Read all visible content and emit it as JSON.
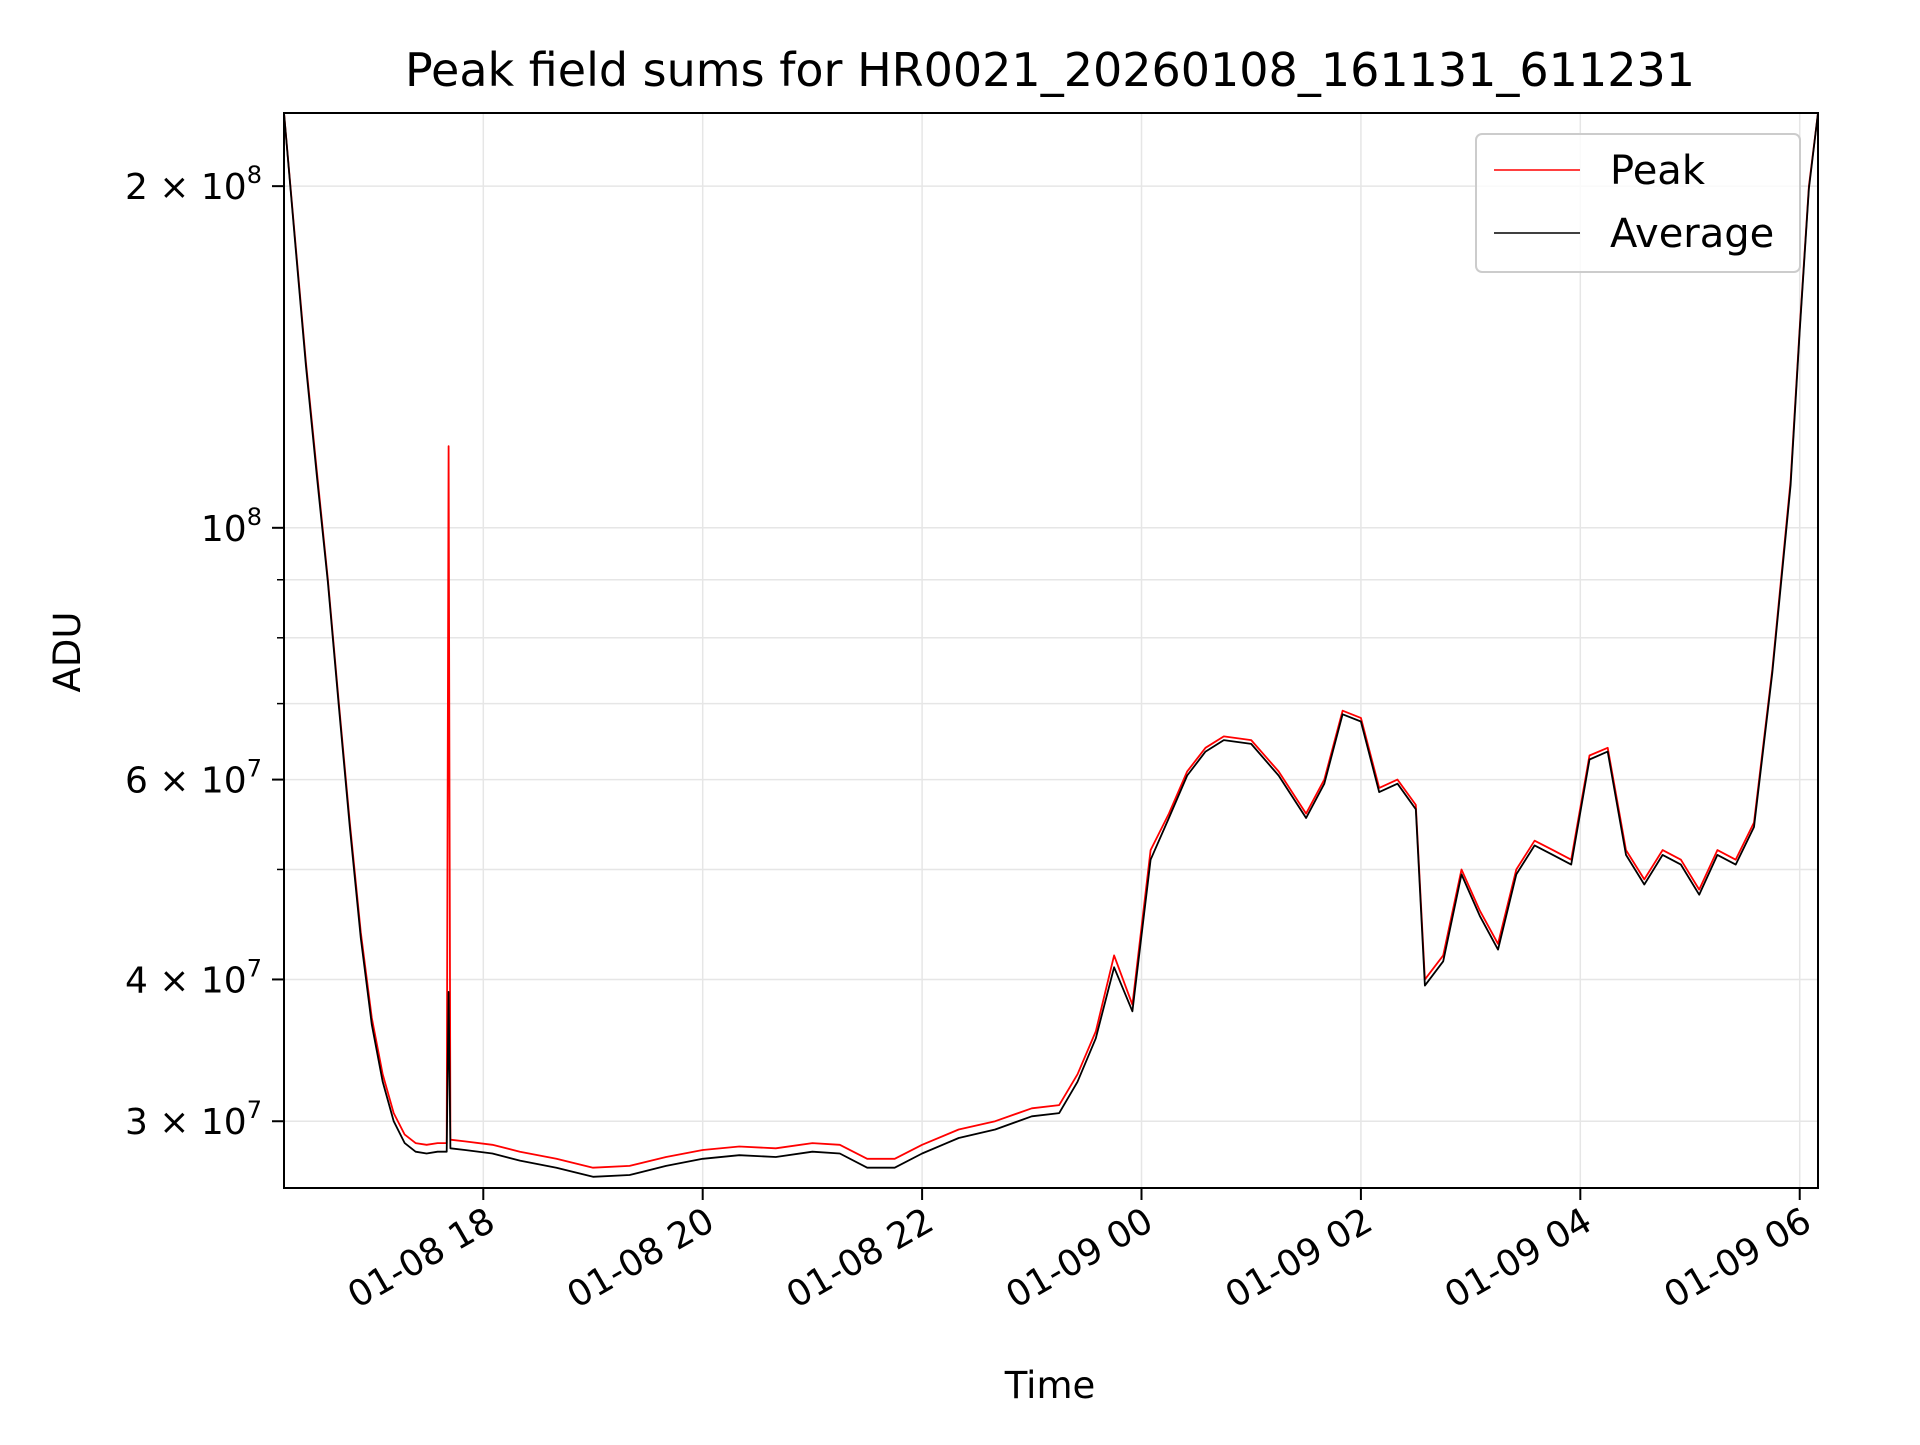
{
  "chart_data": {
    "type": "line",
    "title": "Peak field sums for HR0021_20260108_161131_611231",
    "xlabel": "Time",
    "ylabel": "ADU",
    "y_scale": "log",
    "ylim": [
      26200000,
      232000000
    ],
    "xlim": [
      "2026-01-08 16:11",
      "2026-01-09 06:10"
    ],
    "grid": true,
    "legend_position": "upper right",
    "x_ticks": [
      {
        "value": "2026-01-08 18:00",
        "label": "01-08 18"
      },
      {
        "value": "2026-01-08 20:00",
        "label": "01-08 20"
      },
      {
        "value": "2026-01-08 22:00",
        "label": "01-08 22"
      },
      {
        "value": "2026-01-09 00:00",
        "label": "01-09 00"
      },
      {
        "value": "2026-01-09 02:00",
        "label": "01-09 02"
      },
      {
        "value": "2026-01-09 04:00",
        "label": "01-09 04"
      },
      {
        "value": "2026-01-09 06:00",
        "label": "01-09 06"
      }
    ],
    "y_ticks": [
      {
        "value": 30000000,
        "mantissa": "3",
        "exponent": "7"
      },
      {
        "value": 40000000,
        "mantissa": "4",
        "exponent": "7"
      },
      {
        "value": 60000000,
        "mantissa": "6",
        "exponent": "7"
      },
      {
        "value": 100000000,
        "mantissa": "",
        "exponent": "8"
      },
      {
        "value": 200000000,
        "mantissa": "2",
        "exponent": "8"
      }
    ],
    "y_minor_ticks": [
      50000000,
      70000000,
      80000000,
      90000000
    ],
    "series": [
      {
        "name": "Peak",
        "color": "#ff0000",
        "x": [
          "2026-01-08 16:11",
          "2026-01-08 16:17",
          "2026-01-08 16:23",
          "2026-01-08 16:29",
          "2026-01-08 16:35",
          "2026-01-08 16:41",
          "2026-01-08 16:47",
          "2026-01-08 16:53",
          "2026-01-08 16:59",
          "2026-01-08 17:05",
          "2026-01-08 17:11",
          "2026-01-08 17:17",
          "2026-01-08 17:23",
          "2026-01-08 17:29",
          "2026-01-08 17:35",
          "2026-01-08 17:40",
          "2026-01-08 17:41",
          "2026-01-08 17:42",
          "2026-01-08 17:50",
          "2026-01-08 18:05",
          "2026-01-08 18:20",
          "2026-01-08 18:40",
          "2026-01-08 19:00",
          "2026-01-08 19:20",
          "2026-01-08 19:40",
          "2026-01-08 20:00",
          "2026-01-08 20:20",
          "2026-01-08 20:40",
          "2026-01-08 21:00",
          "2026-01-08 21:15",
          "2026-01-08 21:30",
          "2026-01-08 21:45",
          "2026-01-08 22:00",
          "2026-01-08 22:20",
          "2026-01-08 22:40",
          "2026-01-08 23:00",
          "2026-01-08 23:15",
          "2026-01-08 23:25",
          "2026-01-08 23:35",
          "2026-01-08 23:45",
          "2026-01-08 23:55",
          "2026-01-09 00:05",
          "2026-01-09 00:15",
          "2026-01-09 00:25",
          "2026-01-09 00:35",
          "2026-01-09 00:45",
          "2026-01-09 01:00",
          "2026-01-09 01:15",
          "2026-01-09 01:30",
          "2026-01-09 01:40",
          "2026-01-09 01:50",
          "2026-01-09 02:00",
          "2026-01-09 02:10",
          "2026-01-09 02:20",
          "2026-01-09 02:30",
          "2026-01-09 02:35",
          "2026-01-09 02:45",
          "2026-01-09 02:55",
          "2026-01-09 03:05",
          "2026-01-09 03:15",
          "2026-01-09 03:25",
          "2026-01-09 03:35",
          "2026-01-09 03:45",
          "2026-01-09 03:55",
          "2026-01-09 04:05",
          "2026-01-09 04:15",
          "2026-01-09 04:25",
          "2026-01-09 04:35",
          "2026-01-09 04:45",
          "2026-01-09 04:55",
          "2026-01-09 05:05",
          "2026-01-09 05:15",
          "2026-01-09 05:25",
          "2026-01-09 05:35",
          "2026-01-09 05:45",
          "2026-01-09 05:55",
          "2026-01-09 06:00",
          "2026-01-09 06:05",
          "2026-01-09 06:10"
        ],
        "y": [
          232000000,
          180000000,
          140000000,
          112000000,
          90000000,
          70000000,
          55000000,
          44000000,
          37000000,
          33000000,
          30500000,
          29200000,
          28700000,
          28600000,
          28700000,
          28700000,
          118000000,
          28900000,
          28800000,
          28600000,
          28200000,
          27800000,
          27300000,
          27400000,
          27900000,
          28300000,
          28500000,
          28400000,
          28700000,
          28600000,
          27800000,
          27800000,
          28600000,
          29500000,
          30000000,
          30800000,
          31000000,
          33000000,
          36000000,
          42000000,
          38000000,
          52000000,
          56000000,
          61000000,
          64000000,
          65500000,
          65000000,
          61000000,
          56000000,
          60000000,
          69000000,
          68000000,
          59000000,
          60000000,
          57000000,
          40000000,
          42000000,
          50000000,
          46000000,
          43000000,
          50000000,
          53000000,
          52000000,
          51000000,
          63000000,
          64000000,
          52000000,
          49000000,
          52000000,
          51000000,
          48000000,
          52000000,
          51000000,
          55000000,
          75000000,
          110000000,
          150000000,
          200000000,
          232000000
        ]
      },
      {
        "name": "Average",
        "color": "#000000",
        "x": [
          "2026-01-08 16:11",
          "2026-01-08 16:17",
          "2026-01-08 16:23",
          "2026-01-08 16:29",
          "2026-01-08 16:35",
          "2026-01-08 16:41",
          "2026-01-08 16:47",
          "2026-01-08 16:53",
          "2026-01-08 16:59",
          "2026-01-08 17:05",
          "2026-01-08 17:11",
          "2026-01-08 17:17",
          "2026-01-08 17:23",
          "2026-01-08 17:29",
          "2026-01-08 17:35",
          "2026-01-08 17:40",
          "2026-01-08 17:41",
          "2026-01-08 17:42",
          "2026-01-08 17:50",
          "2026-01-08 18:05",
          "2026-01-08 18:20",
          "2026-01-08 18:40",
          "2026-01-08 19:00",
          "2026-01-08 19:20",
          "2026-01-08 19:40",
          "2026-01-08 20:00",
          "2026-01-08 20:20",
          "2026-01-08 20:40",
          "2026-01-08 21:00",
          "2026-01-08 21:15",
          "2026-01-08 21:30",
          "2026-01-08 21:45",
          "2026-01-08 22:00",
          "2026-01-08 22:20",
          "2026-01-08 22:40",
          "2026-01-08 23:00",
          "2026-01-08 23:15",
          "2026-01-08 23:25",
          "2026-01-08 23:35",
          "2026-01-08 23:45",
          "2026-01-08 23:55",
          "2026-01-09 00:05",
          "2026-01-09 00:15",
          "2026-01-09 00:25",
          "2026-01-09 00:35",
          "2026-01-09 00:45",
          "2026-01-09 01:00",
          "2026-01-09 01:15",
          "2026-01-09 01:30",
          "2026-01-09 01:40",
          "2026-01-09 01:50",
          "2026-01-09 02:00",
          "2026-01-09 02:10",
          "2026-01-09 02:20",
          "2026-01-09 02:30",
          "2026-01-09 02:35",
          "2026-01-09 02:45",
          "2026-01-09 02:55",
          "2026-01-09 03:05",
          "2026-01-09 03:15",
          "2026-01-09 03:25",
          "2026-01-09 03:35",
          "2026-01-09 03:45",
          "2026-01-09 03:55",
          "2026-01-09 04:05",
          "2026-01-09 04:15",
          "2026-01-09 04:25",
          "2026-01-09 04:35",
          "2026-01-09 04:45",
          "2026-01-09 04:55",
          "2026-01-09 05:05",
          "2026-01-09 05:15",
          "2026-01-09 05:25",
          "2026-01-09 05:35",
          "2026-01-09 05:45",
          "2026-01-09 05:55",
          "2026-01-09 06:00",
          "2026-01-09 06:05",
          "2026-01-09 06:10"
        ],
        "y": [
          232000000,
          179000000,
          139000000,
          111000000,
          89500000,
          69500000,
          54500000,
          43500000,
          36500000,
          32500000,
          30000000,
          28700000,
          28200000,
          28100000,
          28200000,
          28200000,
          39000000,
          28400000,
          28300000,
          28100000,
          27700000,
          27300000,
          26800000,
          26900000,
          27400000,
          27800000,
          28000000,
          27900000,
          28200000,
          28100000,
          27300000,
          27300000,
          28100000,
          29000000,
          29500000,
          30300000,
          30500000,
          32500000,
          35500000,
          41000000,
          37500000,
          51000000,
          55500000,
          60500000,
          63500000,
          65000000,
          64500000,
          60500000,
          55500000,
          59500000,
          68500000,
          67500000,
          58500000,
          59500000,
          56500000,
          39500000,
          41500000,
          49500000,
          45500000,
          42500000,
          49500000,
          52500000,
          51500000,
          50500000,
          62500000,
          63500000,
          51500000,
          48500000,
          51500000,
          50500000,
          47500000,
          51500000,
          50500000,
          54500000,
          74500000,
          109000000,
          149000000,
          199000000,
          232000000
        ]
      }
    ]
  }
}
